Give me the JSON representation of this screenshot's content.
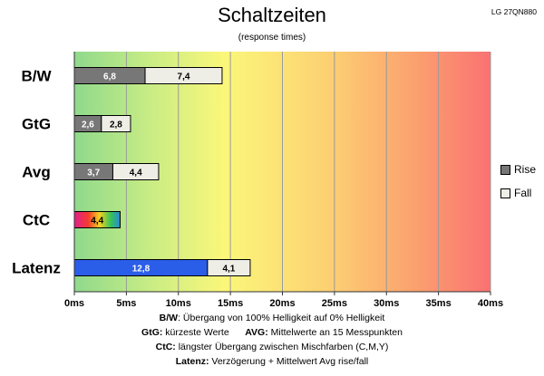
{
  "header": {
    "title": "Schaltzeiten",
    "subtitle": "(response times)",
    "model": "LG 27QN880"
  },
  "legend": [
    {
      "label": "Rise",
      "color": "#777777"
    },
    {
      "label": "Fall",
      "color": "#eeeee6"
    }
  ],
  "notes": [
    {
      "bold": "B/W",
      "text": ":  Übergang von 100% Helligkeit auf 0% Helligkeit"
    },
    {
      "bold": "GtG:",
      "text": " kürzeste  Werte",
      "bold2": "AVG:",
      "text2": " Mittelwerte  an 15 Messpunkten"
    },
    {
      "bold": "CtC:",
      "text": " längster Übergang  zwischen Mischfarben (C,M,Y)"
    },
    {
      "bold": "Latenz:",
      "text": " Verzögerung  + Mittelwert Avg rise/fall"
    }
  ],
  "colors": {
    "rise": "#777777",
    "fall": "#eeeee6",
    "latency": "#2a5ee8"
  },
  "chart_data": {
    "type": "bar",
    "stacked": true,
    "orientation": "horizontal",
    "categories": [
      "B/W",
      "GtG",
      "Avg",
      "CtC",
      "Latenz"
    ],
    "series": [
      {
        "name": "Rise",
        "values": [
          6.8,
          2.6,
          3.7,
          null,
          12.8
        ]
      },
      {
        "name": "Fall",
        "values": [
          7.4,
          2.8,
          4.4,
          null,
          4.1
        ]
      }
    ],
    "ctc_value": 4.4,
    "value_labels": {
      "rise": [
        "6,8",
        "2,6",
        "3,7",
        "4,4",
        "12,8"
      ],
      "fall": [
        "7,4",
        "2,8",
        "4,4",
        "",
        "4,1"
      ]
    },
    "xlim": [
      0,
      40
    ],
    "xticks": [
      0,
      5,
      10,
      15,
      20,
      25,
      30,
      35,
      40
    ],
    "xtick_labels": [
      "0ms",
      "5ms",
      "10ms",
      "15ms",
      "20ms",
      "25ms",
      "30ms",
      "35ms",
      "40ms"
    ],
    "grid": true,
    "legend_position": "right",
    "background": "gradient green-yellow-red"
  }
}
